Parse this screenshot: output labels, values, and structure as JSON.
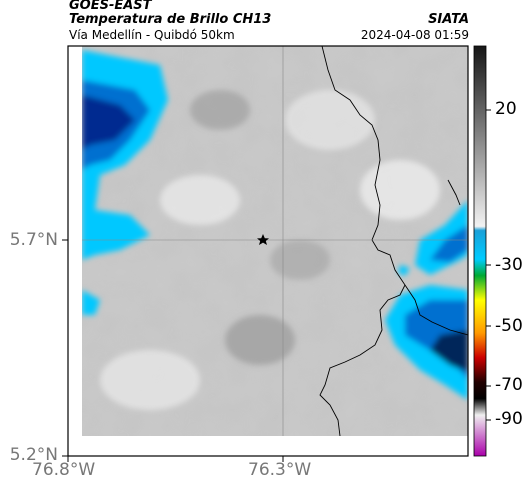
{
  "header": {
    "title_line1": "GOES-EAST",
    "title_line2": "Temperatura de Brillo CH13",
    "subtitle": "Vía Medellín - Quibdó 50km",
    "organization": "SIATA",
    "datetime": "2024-04-08 01:59"
  },
  "map": {
    "lat_ticks": [
      "5.7°N",
      "5.2°N"
    ],
    "lon_ticks": [
      "76.8°W",
      "76.3°W"
    ],
    "marker": "star-marker"
  },
  "colorbar": {
    "tick_labels": [
      "20",
      "-30",
      "-50",
      "-70",
      "-90"
    ],
    "colors": [
      "#1a1a1a",
      "#9a9a9a",
      "#0099dd",
      "#00ccff",
      "#00aa00",
      "#ffff00",
      "#ff8800",
      "#cc0000",
      "#000000",
      "#cc88cc",
      "#990099"
    ]
  }
}
